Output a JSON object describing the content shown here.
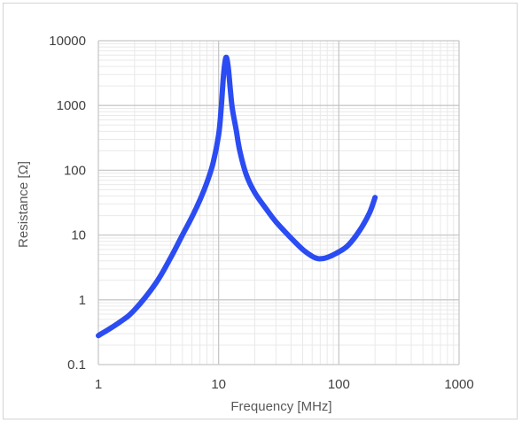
{
  "chart_data": {
    "type": "line",
    "title": "",
    "xlabel": "Frequency [MHz]",
    "ylabel": "Resistance [Ω]",
    "xscale": "log",
    "yscale": "log",
    "xlim": [
      1,
      1000
    ],
    "ylim": [
      0.1,
      10000
    ],
    "grid": true,
    "legend": "none",
    "x_ticks": [
      "1",
      "10",
      "100",
      "1000"
    ],
    "y_ticks": [
      "0.1",
      "1",
      "10",
      "100",
      "1000",
      "10000"
    ],
    "series": [
      {
        "color": "#2b4cf2",
        "x": [
          1,
          1.5,
          2,
          3,
          4,
          5,
          6,
          7,
          8,
          9,
          10,
          10.5,
          11,
          11.5,
          12,
          12.5,
          13,
          14,
          15,
          17,
          20,
          25,
          30,
          40,
          50,
          60,
          65,
          70,
          80,
          100,
          120,
          150,
          180,
          200
        ],
        "y": [
          0.28,
          0.45,
          0.7,
          1.8,
          4.5,
          10,
          19,
          35,
          65,
          130,
          350,
          900,
          3000,
          5500,
          4000,
          1800,
          900,
          420,
          200,
          85,
          45,
          25,
          16,
          9,
          6,
          4.7,
          4.4,
          4.3,
          4.5,
          5.5,
          7,
          12,
          22,
          38
        ]
      }
    ]
  }
}
